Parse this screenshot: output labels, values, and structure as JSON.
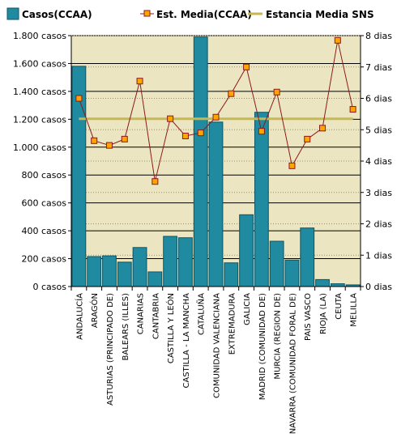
{
  "chart_data": {
    "type": "bar",
    "categories": [
      "ANDALUCÍA",
      "ARAGÓN",
      "ASTURIAS (PRINCIPADO DE)",
      "BALEARS (ILLES)",
      "CANARIAS",
      "CANTABRIA",
      "CASTILLA Y LEÓN",
      "CASTILLA - LA MANCHA",
      "CATALUÑA",
      "COMUNIDAD VALENCIANA",
      "EXTREMADURA",
      "GALICIA",
      "MADRID (COMUNIDAD DE)",
      "MURCIA (REGION DE)",
      "NAVARRA (COMUNIDAD FORAL DE)",
      "PAIS VASCO",
      "RIOJA (LA)",
      "CEUTA",
      "MELILLA"
    ],
    "series": [
      {
        "name": "Casos(CCAA)",
        "type": "bar",
        "axis": "left",
        "color": "#1f8aa0",
        "values": [
          1580,
          215,
          220,
          175,
          280,
          105,
          360,
          350,
          1790,
          1180,
          170,
          515,
          1250,
          325,
          190,
          420,
          50,
          20,
          12
        ]
      },
      {
        "name": "Est. Media(CCAA)",
        "type": "line",
        "axis": "right",
        "line_color": "#8b1a1a",
        "marker_color": "#ffa500",
        "values": [
          6.0,
          4.65,
          4.5,
          4.7,
          6.55,
          3.35,
          5.35,
          4.8,
          4.9,
          5.4,
          6.15,
          7.0,
          4.95,
          6.2,
          3.85,
          4.7,
          5.05,
          7.85,
          5.65
        ]
      },
      {
        "name": "Estancia Media SNS",
        "type": "reference",
        "axis": "right",
        "color": "#c8b850",
        "value": 5.35
      }
    ],
    "left_axis": {
      "min": 0,
      "max": 1800,
      "step": 200,
      "tick_labels": [
        "0 casos",
        "200 casos",
        "400 casos",
        "600 casos",
        "800 casos",
        "1.000 casos",
        "1.200 casos",
        "1.400 casos",
        "1.600 casos",
        "1.800 casos"
      ]
    },
    "right_axis": {
      "min": 0,
      "max": 8,
      "step": 1,
      "tick_labels": [
        "0 dias",
        "1 dias",
        "2 dias",
        "3 dias",
        "4 dias",
        "5 dias",
        "6 dias",
        "7 dias",
        "8 dias"
      ]
    },
    "legend_position": "top",
    "grid": true,
    "plot_background": "#ece5c1"
  }
}
